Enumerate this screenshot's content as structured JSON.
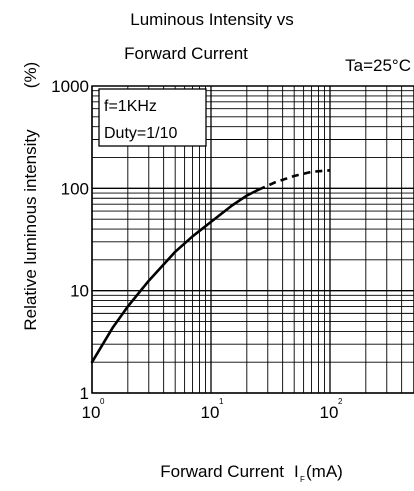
{
  "chart_data": {
    "type": "line",
    "title_line1": "Luminous Intensity vs",
    "title_line2": "Forward Current",
    "condition": "Ta=25°C",
    "xlabel": "Forward Current",
    "xlabel_symbol": "I",
    "xlabel_subscript": "F",
    "xlabel_unit": "(mA)",
    "ylabel": "Relative luminous intensity",
    "ylabel_unit": "(%)",
    "x_scale": "log",
    "y_scale": "log",
    "xlim": [
      1,
      400
    ],
    "ylim": [
      1,
      1000
    ],
    "grid": true,
    "x_ticks": [
      {
        "value": 1,
        "base": "10",
        "exp": "0"
      },
      {
        "value": 10,
        "base": "10",
        "exp": "1"
      },
      {
        "value": 100,
        "base": "10",
        "exp": "2"
      }
    ],
    "y_ticks": [
      {
        "value": 1,
        "label": "1"
      },
      {
        "value": 10,
        "label": "10"
      },
      {
        "value": 100,
        "label": "100"
      },
      {
        "value": 1000,
        "label": "1000"
      }
    ],
    "legend_box": [
      "f=1KHz",
      "Duty=1/10"
    ],
    "series": [
      {
        "style": "solid",
        "x": [
          1,
          1.5,
          2,
          3,
          5,
          7,
          10,
          15,
          20,
          25
        ],
        "y": [
          2,
          4.4,
          7,
          12.5,
          24,
          34,
          47,
          68,
          85,
          97
        ]
      },
      {
        "style": "dashed",
        "x": [
          25,
          35,
          50,
          70,
          100
        ],
        "y": [
          97,
          115,
          132,
          145,
          150
        ]
      }
    ]
  }
}
